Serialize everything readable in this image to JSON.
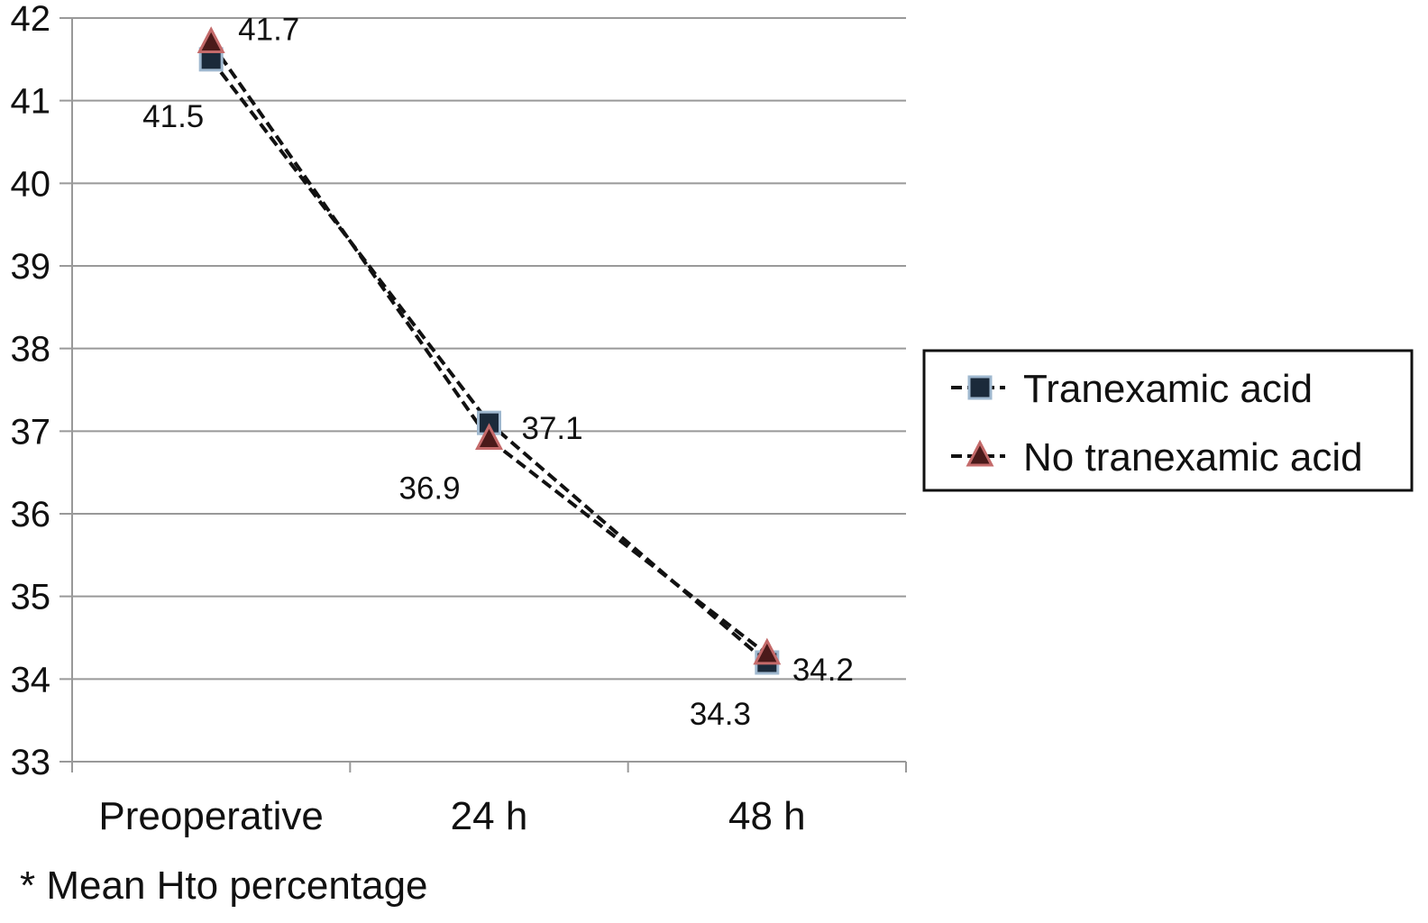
{
  "chart_data": {
    "type": "line",
    "categories": [
      "Preoperative",
      "24 h",
      "48 h"
    ],
    "ylim": [
      33,
      42
    ],
    "yticks": [
      33,
      34,
      35,
      36,
      37,
      38,
      39,
      40,
      41,
      42
    ],
    "grid": true,
    "legend_position": "right",
    "series": [
      {
        "name": "Tranexamic acid",
        "marker": "square",
        "values": [
          41.5,
          37.1,
          34.2
        ],
        "labels": [
          "41.5",
          "37.1",
          "34.2"
        ]
      },
      {
        "name": "No tranexamic acid",
        "marker": "triangle",
        "values": [
          41.7,
          36.9,
          34.3
        ],
        "labels": [
          "41.7",
          "36.9",
          "34.3"
        ]
      }
    ],
    "colors": {
      "square_fill": "#1b2a3a",
      "square_edge": "#9fb8cf",
      "triangle_fill": "#4a1a1a",
      "triangle_edge": "#c46a6a",
      "grid": "#999999",
      "line": "#111111"
    }
  },
  "footnote": "* Mean Hto percentage"
}
